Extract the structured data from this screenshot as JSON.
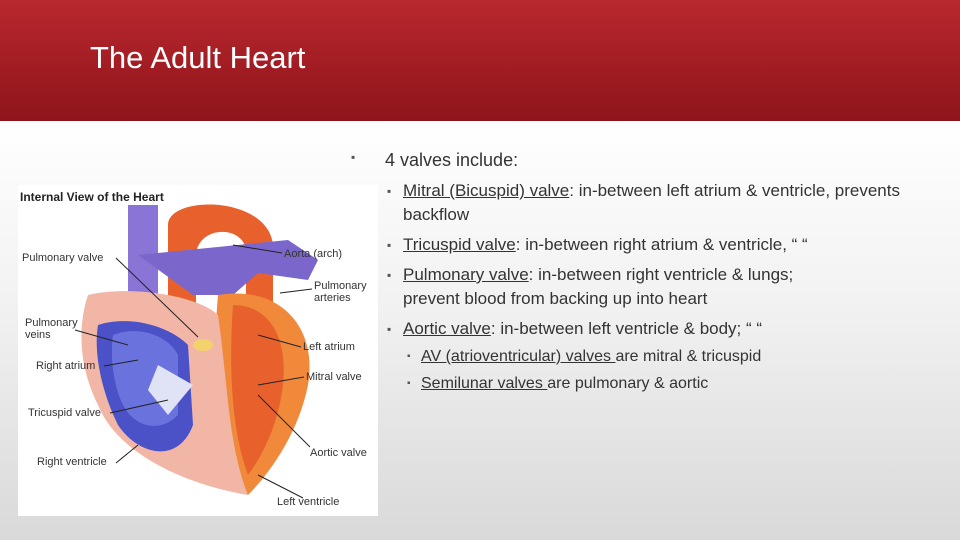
{
  "header": {
    "title": "The Adult Heart"
  },
  "figure": {
    "title": "Internal View of the Heart",
    "labels": [
      "Pulmonary valve",
      "Aorta (arch)",
      "Pulmonary arteries",
      "Pulmonary veins",
      "Left atrium",
      "Right atrium",
      "Mitral valve",
      "Tricuspid valve",
      "Aortic valve",
      "Right ventricle",
      "Left ventricle"
    ]
  },
  "bullets": {
    "heading": "4 valves include:",
    "items": [
      {
        "term": "Mitral (Bicuspid) valve",
        "text": ": in-between left atrium & ventricle, prevents backflow"
      },
      {
        "term": "Tricuspid valve",
        "text": ": in-between right atrium & ventricle, “ “"
      },
      {
        "term": "Pulmonary valve",
        "text": ": in-between right ventricle & lungs; prevent blood from backing up into heart"
      },
      {
        "term": "Aortic valve",
        "text": ": in-between left ventricle & body; “ “"
      }
    ],
    "notes": [
      {
        "term": "AV (atrioventricular) valves ",
        "text": "are mitral & tricuspid"
      },
      {
        "term": "Semilunar valves ",
        "text": "are pulmonary & aortic"
      }
    ]
  }
}
